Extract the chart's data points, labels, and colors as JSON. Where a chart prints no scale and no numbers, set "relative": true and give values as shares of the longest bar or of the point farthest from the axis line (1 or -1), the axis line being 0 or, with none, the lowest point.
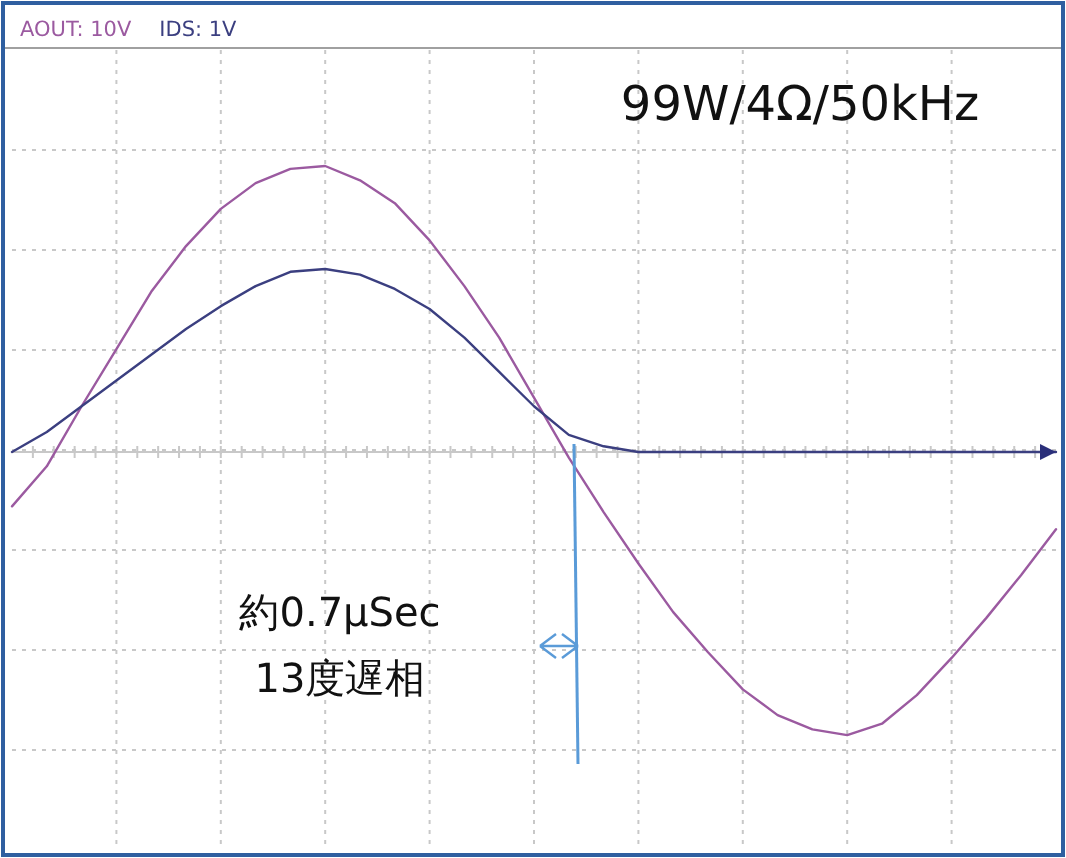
{
  "chart_data": {
    "type": "line",
    "relative": true,
    "grid": true,
    "legend": "top left",
    "categories": [
      null,
      null,
      null,
      null,
      null,
      null,
      null,
      null,
      null,
      null,
      null,
      null,
      null,
      null,
      null,
      null,
      null,
      null,
      null,
      null,
      null,
      null,
      null,
      null,
      null,
      null,
      null,
      null,
      null,
      null,
      null
    ],
    "series": [
      {
        "name": "AOUT: 10V",
        "color": "#9b5aa0",
        "values": [
          -0.19,
          -0.05,
          0.16,
          0.36,
          0.56,
          0.72,
          0.85,
          0.94,
          0.99,
          1.0,
          0.95,
          0.87,
          0.74,
          0.58,
          0.4,
          0.19,
          -0.02,
          -0.21,
          -0.39,
          -0.56,
          -0.7,
          -0.83,
          -0.92,
          -0.97,
          -0.99,
          -0.95,
          -0.85,
          -0.72,
          -0.58,
          -0.43,
          -0.27
        ]
      },
      {
        "name": "IDS: 1V",
        "color": "#3b3f80",
        "values": [
          0.0,
          0.07,
          0.16,
          0.25,
          0.34,
          0.43,
          0.51,
          0.58,
          0.63,
          0.64,
          0.62,
          0.57,
          0.5,
          0.4,
          0.28,
          0.16,
          0.06,
          0.02,
          0.0,
          0.0,
          0.0,
          0.0,
          0.0,
          0.0,
          0.0,
          0.0,
          0.0,
          0.0,
          0.0,
          0.0,
          0.0
        ]
      }
    ],
    "annotations": [
      "99W/4Ω/50kHz",
      "約0.7μSec",
      "13度遅相"
    ]
  }
}
